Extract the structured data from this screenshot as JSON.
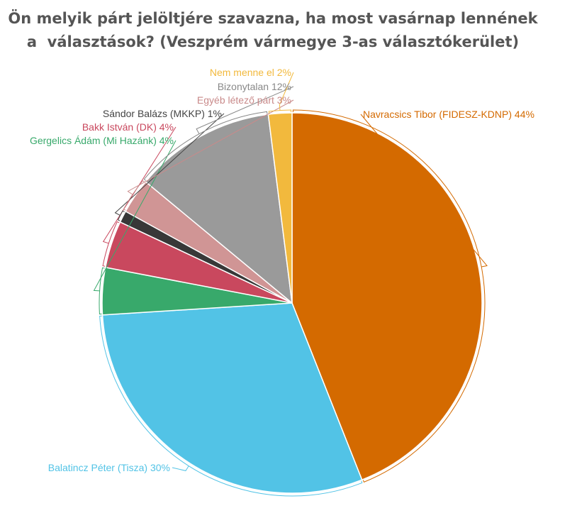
{
  "chart_data": {
    "type": "pie",
    "title_lines": [
      "Ön melyik párt jelöltjére szavazna, ha most vasárnap lennének",
      "a  választások? (Veszprém vármegye 3-as választókerület)"
    ],
    "slices": [
      {
        "label": "Navracsics Tibor (FIDESZ-KDNP) 44%",
        "name": "Navracsics Tibor (FIDESZ-KDNP)",
        "value": 44,
        "color": "#d46a00"
      },
      {
        "label": "Balatincz Péter (Tisza) 30%",
        "name": "Balatincz Péter (Tisza)",
        "value": 30,
        "color": "#52c3e6"
      },
      {
        "label": "Gergelics Ádám (Mi Hazánk) 4%",
        "name": "Gergelics Ádám (Mi Hazánk)",
        "value": 4,
        "color": "#38a96b"
      },
      {
        "label": "Bakk István (DK) 4%",
        "name": "Bakk István (DK)",
        "value": 4,
        "color": "#c9485e"
      },
      {
        "label": "Sándor Balázs (MKKP) 1%",
        "name": "Sándor Balázs (MKKP)",
        "value": 1,
        "color": "#383838"
      },
      {
        "label": "Egyéb létező párt 3%",
        "name": "Egyéb létező párt",
        "value": 3,
        "color": "#d09595"
      },
      {
        "label": "Bizonytalan 12%",
        "name": "Bizonytalan",
        "value": 12,
        "color": "#9a9a9a"
      },
      {
        "label": "Nem menne el 2%",
        "name": "Nem menne el",
        "value": 2,
        "color": "#f2b93d"
      }
    ],
    "label_colors": [
      "#d46a00",
      "#52c3e6",
      "#38a96b",
      "#c9485e",
      "#444444",
      "#c98a8a",
      "#888888",
      "#f2b93d"
    ],
    "start": "top",
    "direction": "clockwise"
  }
}
